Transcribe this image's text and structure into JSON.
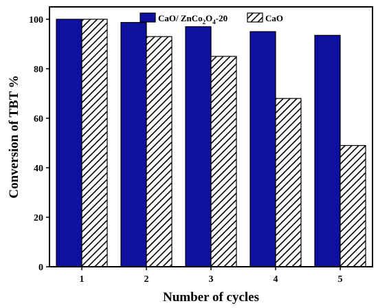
{
  "chart_data": {
    "type": "bar",
    "xlabel": "Number of cycles",
    "ylabel": "Conversion of TBT %",
    "categories": [
      "1",
      "2",
      "3",
      "4",
      "5"
    ],
    "ylim": [
      0,
      105
    ],
    "yticks": [
      0,
      20,
      40,
      60,
      80,
      100
    ],
    "grid": false,
    "legend_position": "top-right",
    "series": [
      {
        "name": "CaO/ ZnCo2O4-20",
        "legend_parts": [
          "CaO/ ZnCo",
          "2",
          "O",
          "4",
          "-20"
        ],
        "values": [
          100,
          98.7,
          97,
          95,
          93.5
        ],
        "color": "#1010a0",
        "fill": "solid"
      },
      {
        "name": "CaO",
        "values": [
          100,
          93,
          85,
          68,
          49
        ],
        "color": "#000000",
        "fill": "hatched"
      }
    ]
  }
}
